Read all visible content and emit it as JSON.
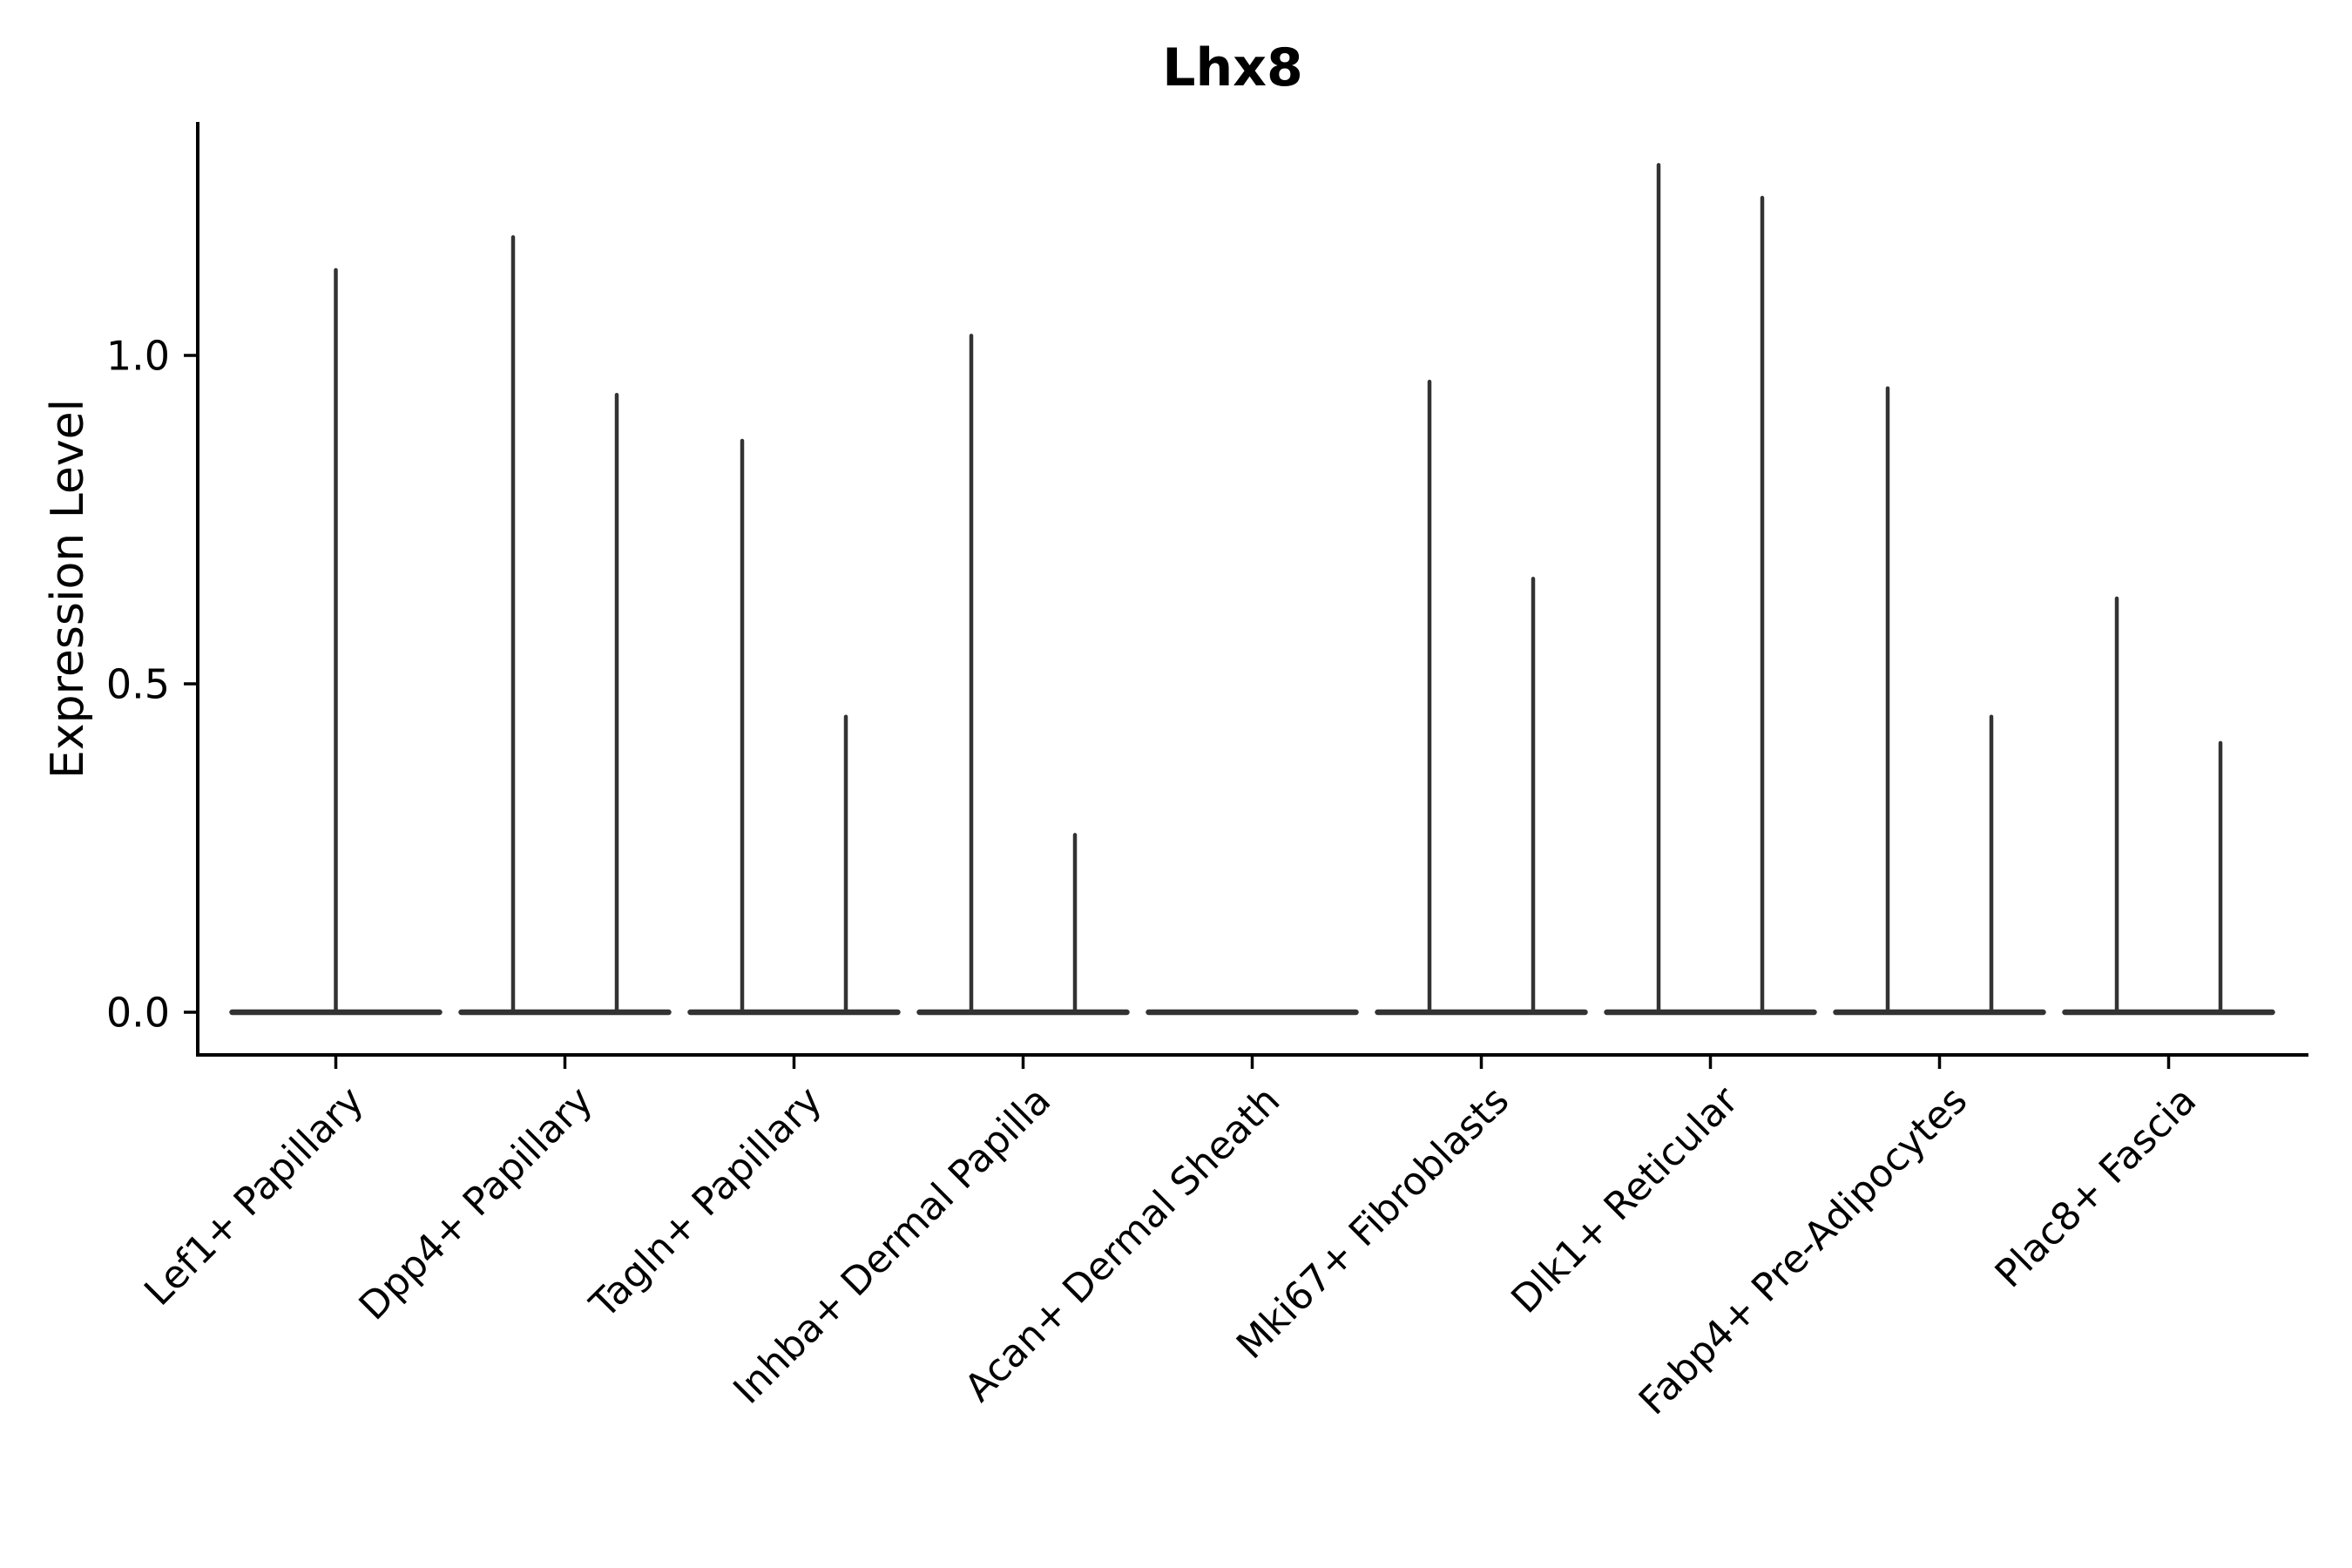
{
  "title": "Lhx8",
  "colors": {
    "background": "#ffffff",
    "axis": "#000000",
    "text": "#000000",
    "violin": "#333333"
  },
  "chart_data": {
    "type": "violin",
    "title": "Lhx8",
    "xlabel": "",
    "ylabel": "Expression Level",
    "legend": null,
    "grid": false,
    "ylim": [
      -0.065,
      1.355
    ],
    "yticks": [
      {
        "label": "0.0",
        "value": 0.0
      },
      {
        "label": "0.5",
        "value": 0.5
      },
      {
        "label": "1.0",
        "value": 1.0
      }
    ],
    "categories": [
      "Lef1+ Papillary",
      "Dpp4+ Papillary",
      "Tagln+ Papillary",
      "Inhba+ Dermal Papilla",
      "Acan+ Dermal Sheath",
      "Mki67+ Fibroblasts",
      "Dlk1+ Reticular",
      "Fabp4+ Pre-Adipocytes",
      "Plac8+ Fascia"
    ],
    "series": [
      {
        "category": "Lef1+ Papillary",
        "violins": [
          {
            "offset": 0.0,
            "max": 1.13
          }
        ]
      },
      {
        "category": "Dpp4+ Papillary",
        "violins": [
          {
            "offset": -0.226,
            "max": 1.18
          },
          {
            "offset": 0.226,
            "max": 0.94
          }
        ]
      },
      {
        "category": "Tagln+ Papillary",
        "violins": [
          {
            "offset": -0.226,
            "max": 0.87
          },
          {
            "offset": 0.226,
            "max": 0.45
          }
        ]
      },
      {
        "category": "Inhba+ Dermal Papilla",
        "violins": [
          {
            "offset": -0.226,
            "max": 1.03
          },
          {
            "offset": 0.226,
            "max": 0.27
          }
        ]
      },
      {
        "category": "Acan+ Dermal Sheath",
        "violins": [
          {
            "offset": -0.226,
            "max": 0.0
          },
          {
            "offset": 0.226,
            "max": 0.0
          }
        ]
      },
      {
        "category": "Mki67+ Fibroblasts",
        "violins": [
          {
            "offset": -0.226,
            "max": 0.96
          },
          {
            "offset": 0.226,
            "max": 0.66
          }
        ]
      },
      {
        "category": "Dlk1+ Reticular",
        "violins": [
          {
            "offset": -0.226,
            "max": 1.29
          },
          {
            "offset": 0.226,
            "max": 1.24
          }
        ]
      },
      {
        "category": "Fabp4+ Pre-Adipocytes",
        "violins": [
          {
            "offset": -0.226,
            "max": 0.95
          },
          {
            "offset": 0.226,
            "max": 0.45
          }
        ]
      },
      {
        "category": "Plac8+ Fascia",
        "violins": [
          {
            "offset": -0.226,
            "max": 0.63
          },
          {
            "offset": 0.226,
            "max": 0.41
          }
        ]
      }
    ],
    "baseline_value": 0.0
  }
}
